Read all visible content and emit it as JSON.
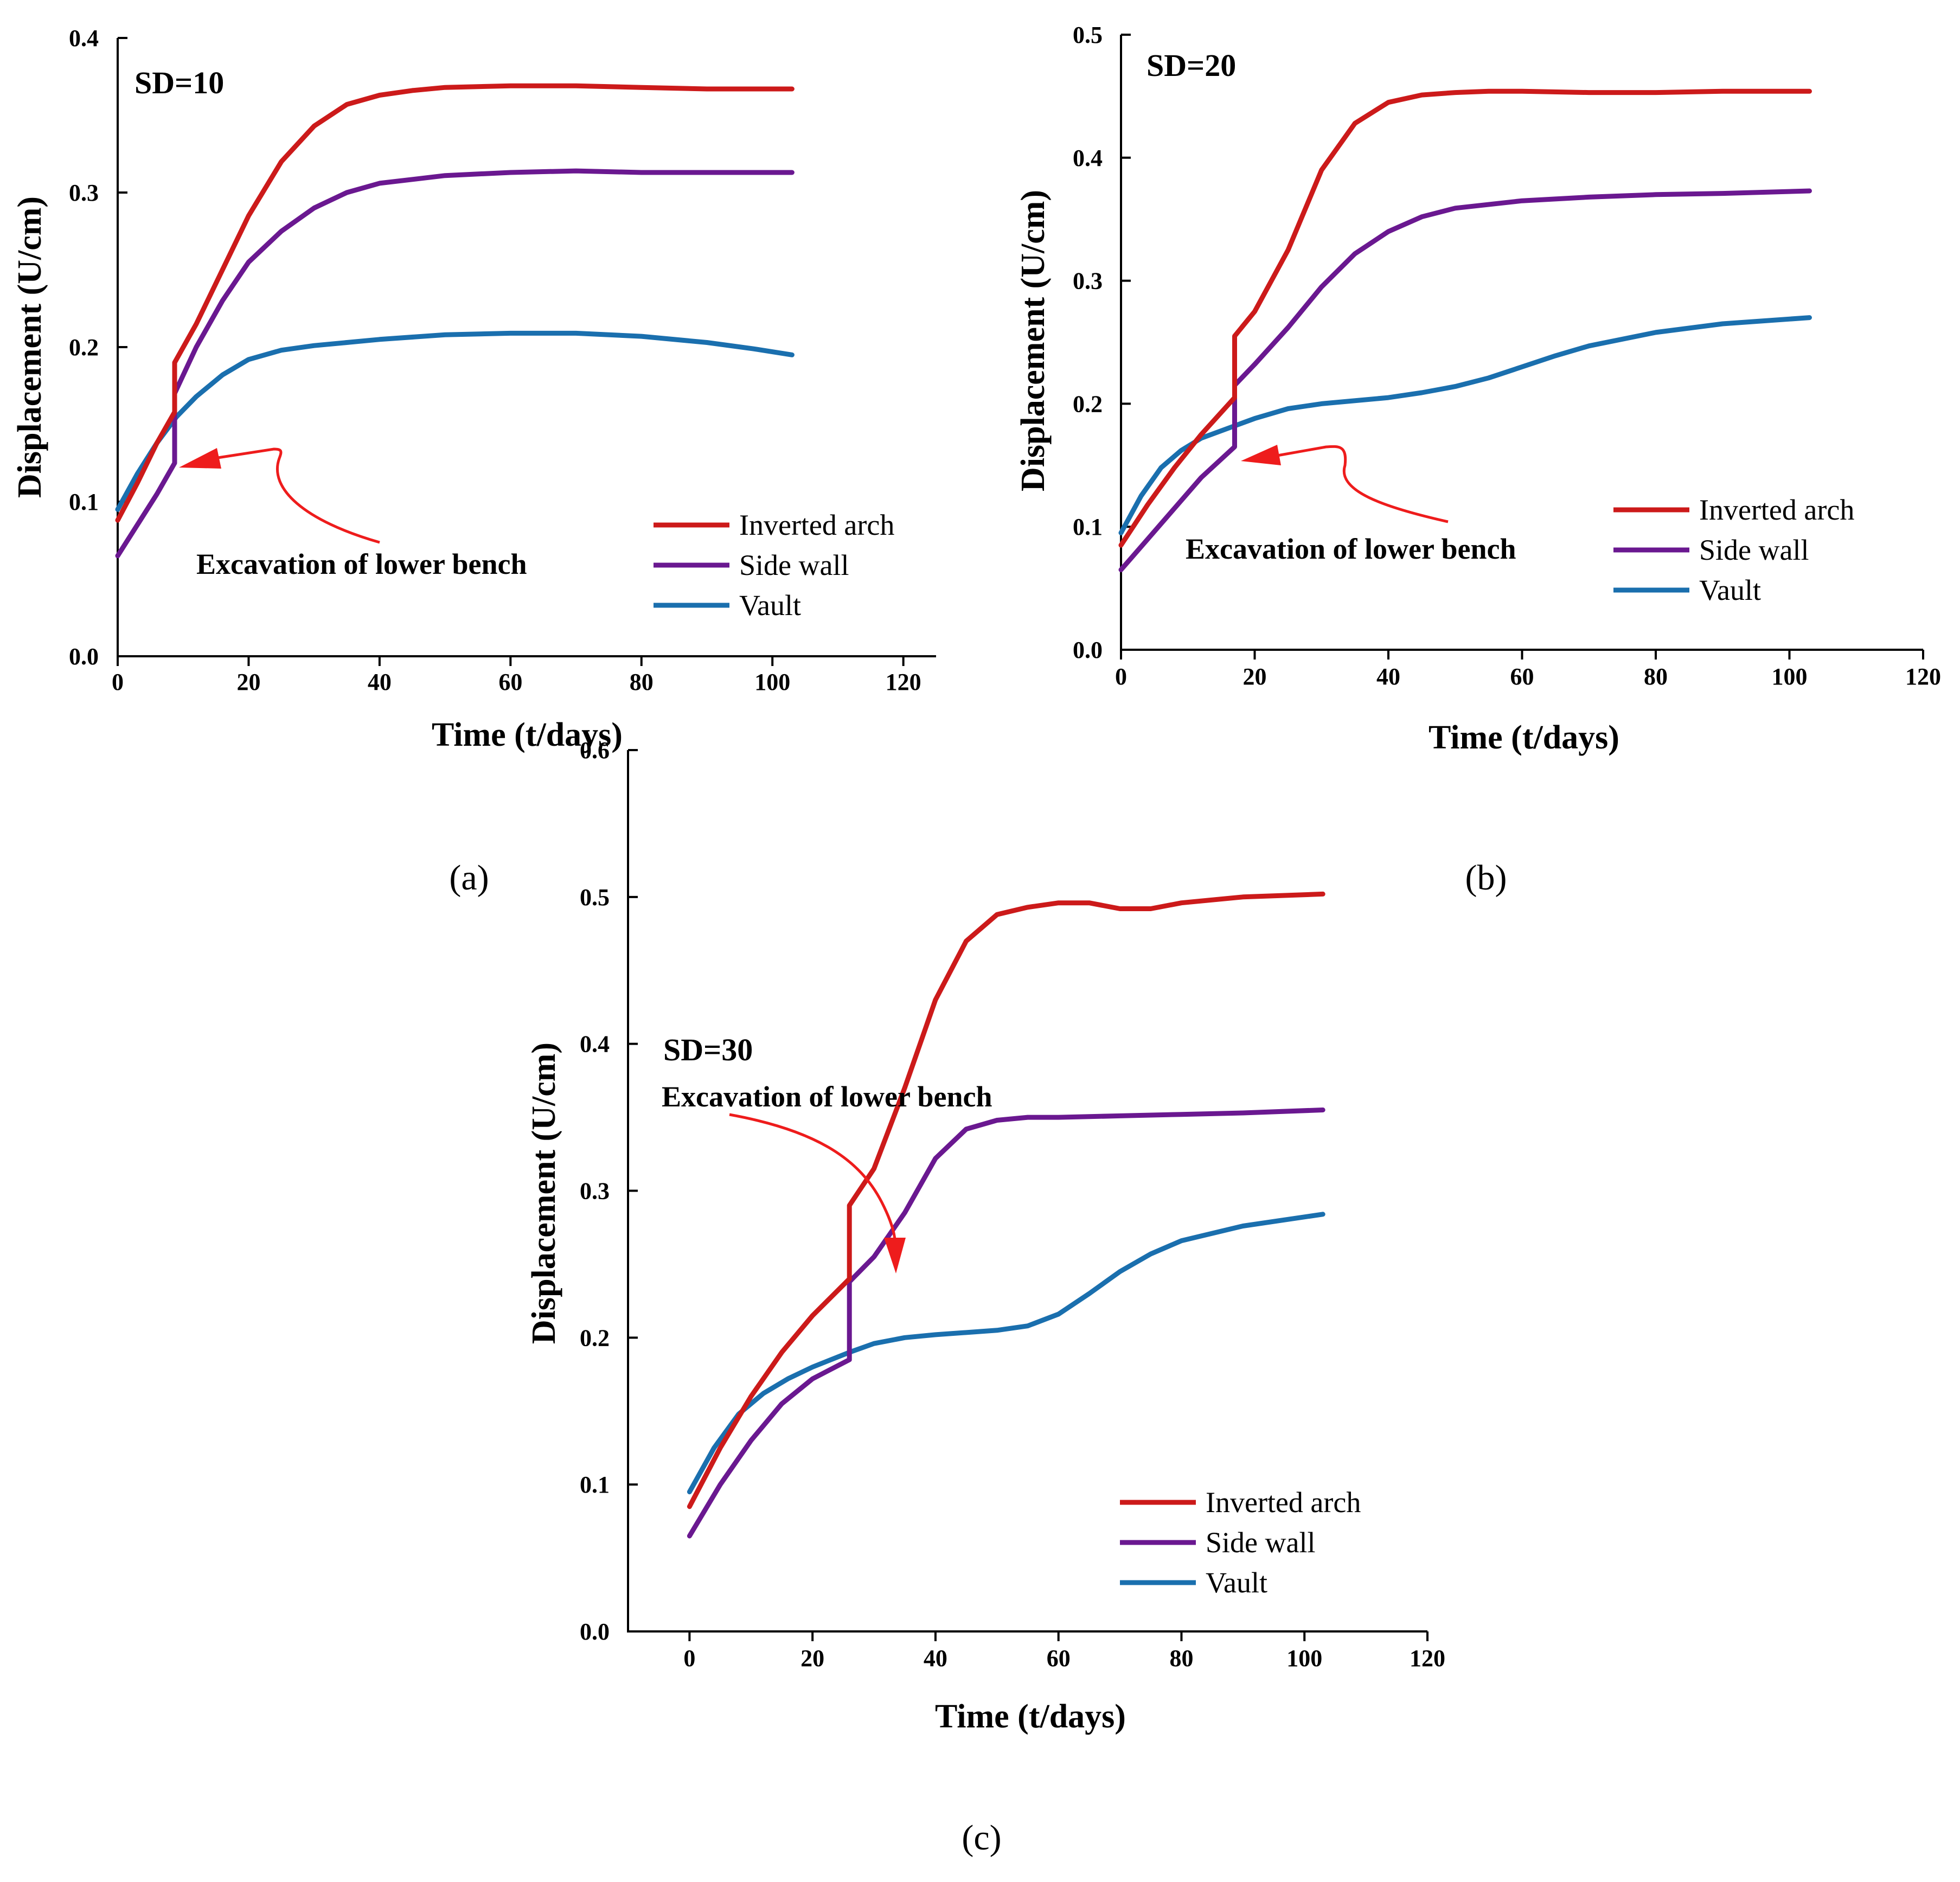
{
  "colors": {
    "inverted_arch": "#cc1a1a",
    "side_wall": "#6a1890",
    "vault": "#1a6fae",
    "arrow": "#ee1c1c"
  },
  "chart_data": [
    {
      "type": "line",
      "caption": "(a)",
      "tag": "SD=10",
      "annotation": "Excavation of lower bench",
      "xlabel": "Time (t/days)",
      "ylabel": "Displacement (U/cm)",
      "xlim": [
        0,
        125
      ],
      "ylim": [
        0,
        0.4
      ],
      "xticks": [
        0,
        20,
        40,
        60,
        80,
        100,
        120
      ],
      "yticks": [
        0.0,
        0.1,
        0.2,
        0.3,
        0.4
      ],
      "grid": false,
      "legend_position": "bottom-right",
      "series": [
        {
          "name": "Inverted arch",
          "color_key": "inverted_arch",
          "x": [
            0,
            3,
            6,
            8.7,
            8.7,
            12,
            16,
            20,
            25,
            30,
            35,
            40,
            45,
            50,
            60,
            70,
            80,
            90,
            103
          ],
          "y": [
            0.088,
            0.112,
            0.138,
            0.158,
            0.19,
            0.215,
            0.25,
            0.285,
            0.32,
            0.343,
            0.357,
            0.363,
            0.366,
            0.368,
            0.369,
            0.369,
            0.368,
            0.367,
            0.367
          ]
        },
        {
          "name": "Side wall",
          "color_key": "side_wall",
          "x": [
            0,
            3,
            6,
            8.7,
            8.7,
            12,
            16,
            20,
            25,
            30,
            35,
            40,
            50,
            60,
            70,
            80,
            90,
            103
          ],
          "y": [
            0.065,
            0.085,
            0.105,
            0.125,
            0.17,
            0.2,
            0.23,
            0.255,
            0.275,
            0.29,
            0.3,
            0.306,
            0.311,
            0.313,
            0.314,
            0.313,
            0.313,
            0.313
          ]
        },
        {
          "name": "Vault",
          "color_key": "vault",
          "x": [
            0,
            3,
            6,
            9,
            12,
            16,
            20,
            25,
            30,
            40,
            50,
            60,
            70,
            80,
            90,
            97,
            103
          ],
          "y": [
            0.095,
            0.118,
            0.138,
            0.155,
            0.168,
            0.182,
            0.192,
            0.198,
            0.201,
            0.205,
            0.208,
            0.209,
            0.209,
            0.207,
            0.203,
            0.199,
            0.195
          ]
        }
      ]
    },
    {
      "type": "line",
      "caption": "(b)",
      "tag": "SD=20",
      "annotation": "Excavation of lower bench",
      "xlabel": "Time (t/days)",
      "ylabel": "Displacement (U/cm)",
      "xlim": [
        0,
        120
      ],
      "ylim": [
        0,
        0.5
      ],
      "xticks": [
        0,
        20,
        40,
        60,
        80,
        100,
        120
      ],
      "yticks": [
        0.0,
        0.1,
        0.2,
        0.3,
        0.4,
        0.5
      ],
      "grid": false,
      "legend_position": "bottom-right",
      "series": [
        {
          "name": "Inverted arch",
          "color_key": "inverted_arch",
          "x": [
            0,
            4,
            8,
            12,
            17,
            17,
            20,
            25,
            30,
            35,
            40,
            45,
            50,
            55,
            60,
            70,
            80,
            90,
            103
          ],
          "y": [
            0.085,
            0.118,
            0.148,
            0.175,
            0.205,
            0.255,
            0.275,
            0.325,
            0.39,
            0.428,
            0.445,
            0.451,
            0.453,
            0.454,
            0.454,
            0.453,
            0.453,
            0.454,
            0.454
          ]
        },
        {
          "name": "Side wall",
          "color_key": "side_wall",
          "x": [
            0,
            4,
            8,
            12,
            17,
            17,
            20,
            25,
            30,
            35,
            40,
            45,
            50,
            60,
            70,
            80,
            90,
            103
          ],
          "y": [
            0.065,
            0.09,
            0.115,
            0.14,
            0.165,
            0.215,
            0.232,
            0.262,
            0.295,
            0.322,
            0.34,
            0.352,
            0.359,
            0.365,
            0.368,
            0.37,
            0.371,
            0.373
          ]
        },
        {
          "name": "Vault",
          "color_key": "vault",
          "x": [
            0,
            3,
            6,
            9,
            12,
            17,
            20,
            25,
            30,
            40,
            45,
            50,
            55,
            60,
            65,
            70,
            80,
            90,
            103
          ],
          "y": [
            0.095,
            0.125,
            0.148,
            0.162,
            0.172,
            0.182,
            0.188,
            0.196,
            0.2,
            0.205,
            0.209,
            0.214,
            0.221,
            0.23,
            0.239,
            0.247,
            0.258,
            0.265,
            0.27
          ]
        }
      ]
    },
    {
      "type": "line",
      "caption": "(c)",
      "tag": "SD=30",
      "annotation": "Excavation of lower bench",
      "xlabel": "Time (t/days)",
      "ylabel": "Displacement (U/cm)",
      "xlim": [
        -10,
        120
      ],
      "ylim": [
        0,
        0.6
      ],
      "xticks": [
        0,
        20,
        40,
        60,
        80,
        100,
        120
      ],
      "yticks": [
        0.0,
        0.1,
        0.2,
        0.3,
        0.4,
        0.5,
        0.6
      ],
      "grid": false,
      "legend_position": "bottom-right",
      "series": [
        {
          "name": "Inverted arch",
          "color_key": "inverted_arch",
          "x": [
            0,
            5,
            10,
            15,
            20,
            26,
            26,
            30,
            35,
            40,
            45,
            50,
            55,
            60,
            65,
            70,
            75,
            80,
            90,
            103
          ],
          "y": [
            0.085,
            0.125,
            0.16,
            0.19,
            0.215,
            0.24,
            0.29,
            0.315,
            0.37,
            0.43,
            0.47,
            0.488,
            0.493,
            0.496,
            0.496,
            0.492,
            0.492,
            0.496,
            0.5,
            0.502
          ]
        },
        {
          "name": "Side wall",
          "color_key": "side_wall",
          "x": [
            0,
            5,
            10,
            15,
            20,
            26,
            26,
            30,
            35,
            40,
            45,
            50,
            55,
            60,
            70,
            80,
            90,
            103
          ],
          "y": [
            0.065,
            0.1,
            0.13,
            0.155,
            0.172,
            0.185,
            0.238,
            0.255,
            0.285,
            0.322,
            0.342,
            0.348,
            0.35,
            0.35,
            0.351,
            0.352,
            0.353,
            0.355
          ]
        },
        {
          "name": "Vault",
          "color_key": "vault",
          "x": [
            0,
            4,
            8,
            12,
            16,
            20,
            26,
            30,
            35,
            40,
            50,
            55,
            60,
            65,
            70,
            75,
            80,
            90,
            103
          ],
          "y": [
            0.095,
            0.125,
            0.148,
            0.162,
            0.172,
            0.18,
            0.19,
            0.196,
            0.2,
            0.202,
            0.205,
            0.208,
            0.216,
            0.23,
            0.245,
            0.257,
            0.266,
            0.276,
            0.284
          ]
        }
      ]
    }
  ]
}
